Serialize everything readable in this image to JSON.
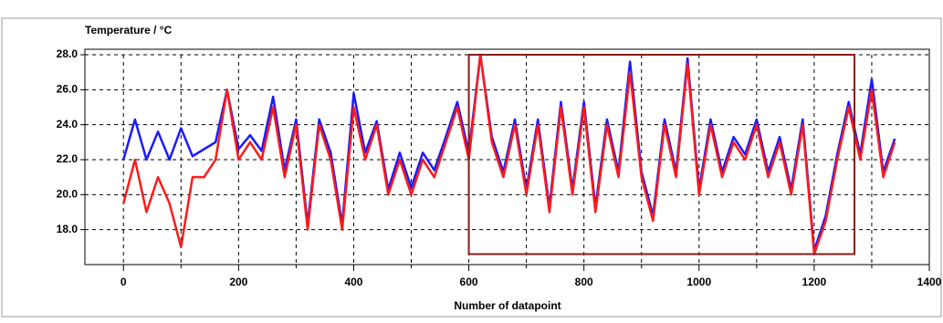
{
  "chart_data": {
    "type": "line",
    "title": "Temperature / °C",
    "x_label": "Number of datapoint",
    "x": [
      0,
      20,
      40,
      60,
      80,
      100,
      120,
      140,
      160,
      180,
      200,
      220,
      240,
      260,
      280,
      300,
      320,
      340,
      360,
      380,
      400,
      420,
      440,
      460,
      480,
      500,
      520,
      540,
      560,
      580,
      600,
      620,
      640,
      660,
      680,
      700,
      720,
      740,
      760,
      780,
      800,
      820,
      840,
      860,
      880,
      900,
      920,
      940,
      960,
      980,
      1000,
      1020,
      1040,
      1060,
      1080,
      1100,
      1120,
      1140,
      1160,
      1180,
      1200,
      1220,
      1240,
      1260,
      1280,
      1300,
      1320,
      1340
    ],
    "series": [
      {
        "name": "Blue",
        "color": "#1a1aff",
        "values": [
          22,
          24.3,
          22,
          23.6,
          22,
          23.8,
          22.2,
          22.6,
          23,
          26,
          22.6,
          23.4,
          22.5,
          25.6,
          21.4,
          24.3,
          18.3,
          24.3,
          22.4,
          18.3,
          25.8,
          22.4,
          24.2,
          20.3,
          22.4,
          20.4,
          22.4,
          21.4,
          23.3,
          25.3,
          22.4,
          28,
          23.3,
          21.3,
          24.3,
          20.3,
          24.3,
          19.3,
          25.3,
          20.3,
          25.3,
          19.3,
          24.3,
          21.3,
          27.6,
          21.3,
          18.8,
          24.3,
          21.3,
          27.8,
          20.3,
          24.3,
          21.3,
          23.3,
          22.3,
          24.3,
          21.3,
          23.3,
          20.3,
          24.3,
          16.8,
          18.8,
          22.3,
          25.3,
          22.3,
          26.6,
          21.3,
          23.2
        ]
      },
      {
        "name": "Red",
        "color": "#ff1a1a",
        "values": [
          19.5,
          22,
          19,
          21,
          19.5,
          17,
          21,
          21,
          22,
          26,
          22,
          23,
          22,
          25,
          21,
          24,
          18,
          24,
          22,
          18,
          25,
          22,
          24,
          20,
          22,
          20,
          22,
          21,
          23,
          25,
          22,
          28,
          23,
          21,
          24,
          20,
          24,
          19,
          25,
          20,
          25,
          19,
          24,
          21,
          27,
          21,
          18.5,
          24,
          21,
          27.5,
          20,
          24,
          21,
          23,
          22,
          24,
          21,
          23,
          20,
          24,
          16.6,
          18.5,
          22,
          25,
          22,
          26,
          21,
          23
        ]
      }
    ],
    "xlim": [
      -67,
      1400
    ],
    "ylim": [
      16,
      28
    ],
    "xticks": [
      0,
      200,
      400,
      600,
      800,
      1000,
      1200,
      1400
    ],
    "x_minor_ticks": [
      100,
      300,
      500,
      700,
      900,
      1100,
      1300
    ],
    "yticks": [
      {
        "value": 18,
        "label": "18.0"
      },
      {
        "value": 20,
        "label": "20.0"
      },
      {
        "value": 22,
        "label": "22.0"
      },
      {
        "value": 24,
        "label": "24.0"
      },
      {
        "value": 26,
        "label": "26.0"
      },
      {
        "value": 28,
        "label": "28.0"
      }
    ],
    "grid": true,
    "highlight": {
      "x": [
        600,
        1270
      ],
      "y": [
        16.6,
        28
      ],
      "color": "#8b1a1a"
    }
  }
}
